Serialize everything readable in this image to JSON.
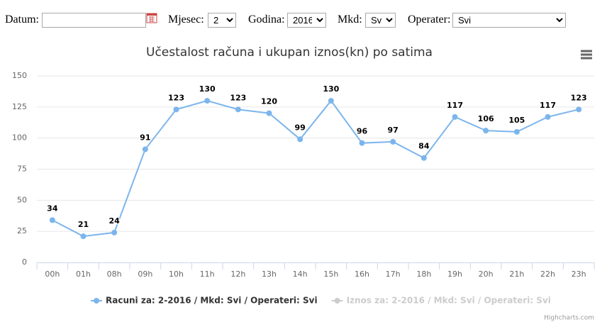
{
  "form": {
    "datum": {
      "label": "Datum:",
      "value": ""
    },
    "mjesec": {
      "label": "Mjesec:",
      "value": "2"
    },
    "godina": {
      "label": "Godina:",
      "value": "2016"
    },
    "mkd": {
      "label": "Mkd:",
      "value": "Svi"
    },
    "operater": {
      "label": "Operater:",
      "value": "Svi"
    }
  },
  "chart_data": {
    "type": "line",
    "title": "Učestalost računa i ukupan iznos(kn) po satima",
    "categories": [
      "00h",
      "01h",
      "08h",
      "09h",
      "10h",
      "11h",
      "12h",
      "13h",
      "14h",
      "15h",
      "16h",
      "17h",
      "18h",
      "19h",
      "20h",
      "21h",
      "22h",
      "23h"
    ],
    "series": [
      {
        "name": "Racuni za: 2-2016 / Mkd: Svi / Operateri: Svi",
        "color": "#7cb5ec",
        "visible": true,
        "values": [
          34,
          21,
          24,
          91,
          123,
          130,
          123,
          120,
          99,
          130,
          96,
          97,
          84,
          117,
          106,
          105,
          117,
          123
        ]
      },
      {
        "name": "Iznos za: 2-2016 / Mkd: Svi / Operateri: Svi",
        "color": "#cccccc",
        "visible": false
      }
    ],
    "ylim": [
      0,
      150
    ],
    "yticks": [
      0,
      25,
      50,
      75,
      100,
      125,
      150
    ],
    "grid": true,
    "credits": "Highcharts.com"
  }
}
